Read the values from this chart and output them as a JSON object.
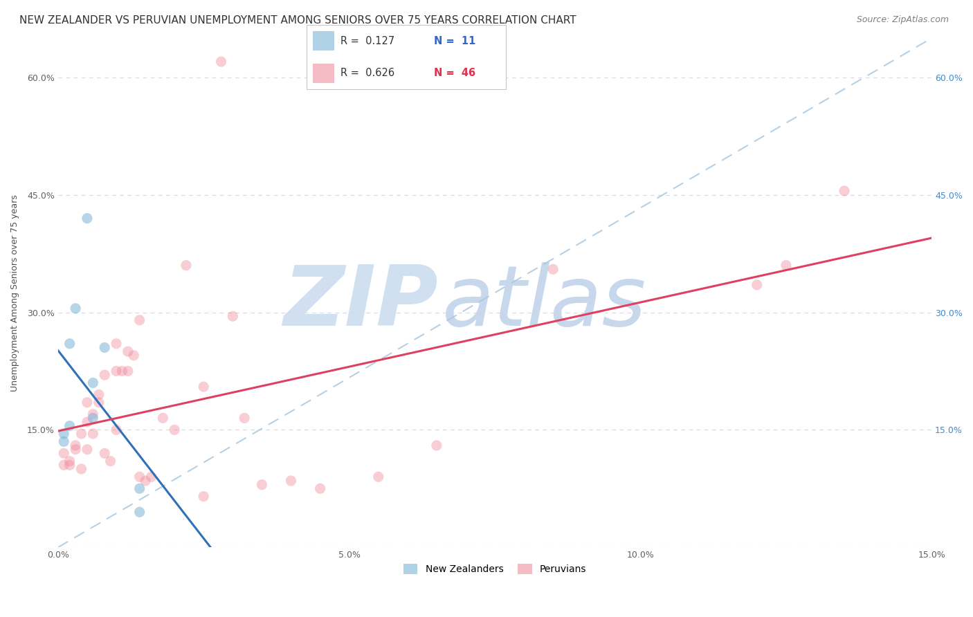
{
  "title": "NEW ZEALANDER VS PERUVIAN UNEMPLOYMENT AMONG SENIORS OVER 75 YEARS CORRELATION CHART",
  "source": "Source: ZipAtlas.com",
  "ylabel": "Unemployment Among Seniors over 75 years",
  "xlabel": "",
  "watermark_zip": "ZIP",
  "watermark_atlas": "atlas",
  "xlim": [
    0,
    15
  ],
  "ylim": [
    0,
    65
  ],
  "xticks": [
    0,
    5,
    10,
    15
  ],
  "yticks": [
    0,
    15,
    30,
    45,
    60
  ],
  "xticklabels": [
    "0.0%",
    "5.0%",
    "10.0%",
    "15.0%"
  ],
  "yticklabels": [
    "",
    "15.0%",
    "30.0%",
    "45.0%",
    "60.0%"
  ],
  "nz_x": [
    0.1,
    0.1,
    0.2,
    0.2,
    0.3,
    0.5,
    0.6,
    0.6,
    0.8,
    1.4,
    1.4
  ],
  "nz_y": [
    14.5,
    13.5,
    15.5,
    26.0,
    30.5,
    42.0,
    21.0,
    16.5,
    25.5,
    4.5,
    7.5
  ],
  "peru_x": [
    0.1,
    0.1,
    0.2,
    0.2,
    0.3,
    0.3,
    0.4,
    0.4,
    0.5,
    0.5,
    0.5,
    0.6,
    0.6,
    0.7,
    0.7,
    0.8,
    0.8,
    0.9,
    1.0,
    1.0,
    1.1,
    1.2,
    1.3,
    1.4,
    1.5,
    1.6,
    1.8,
    2.0,
    2.2,
    2.5,
    2.5,
    3.0,
    3.2,
    3.5,
    4.0,
    4.5,
    5.5,
    6.5,
    8.5,
    12.0,
    12.5,
    13.5,
    1.0,
    1.2,
    1.4,
    2.8
  ],
  "peru_y": [
    10.5,
    12.0,
    11.0,
    10.5,
    12.5,
    13.0,
    14.5,
    10.0,
    18.5,
    16.0,
    12.5,
    17.0,
    14.5,
    19.5,
    18.5,
    22.0,
    12.0,
    11.0,
    22.5,
    15.0,
    22.5,
    22.5,
    24.5,
    9.0,
    8.5,
    9.0,
    16.5,
    15.0,
    36.0,
    6.5,
    20.5,
    29.5,
    16.5,
    8.0,
    8.5,
    7.5,
    9.0,
    13.0,
    35.5,
    33.5,
    36.0,
    45.5,
    26.0,
    25.0,
    29.0,
    62.0
  ],
  "nz_color": "#7ab4d8",
  "peru_color": "#f090a0",
  "nz_line_color": "#3070b8",
  "peru_line_color": "#e04060",
  "diag_line_color": "#aac8e0",
  "bg_color": "#ffffff",
  "grid_color": "#d8d8e4",
  "title_color": "#333333",
  "source_color": "#808080",
  "ylabel_color": "#505050",
  "left_tick_color": "#606060",
  "right_tick_color": "#4488cc",
  "watermark_color_zip": "#d0e0f0",
  "watermark_color_atlas": "#c8d8ec",
  "title_fontsize": 11,
  "source_fontsize": 9,
  "ylabel_fontsize": 9,
  "tick_fontsize": 9,
  "marker_size": 120,
  "nz_marker_alpha": 0.55,
  "peru_marker_alpha": 0.45
}
